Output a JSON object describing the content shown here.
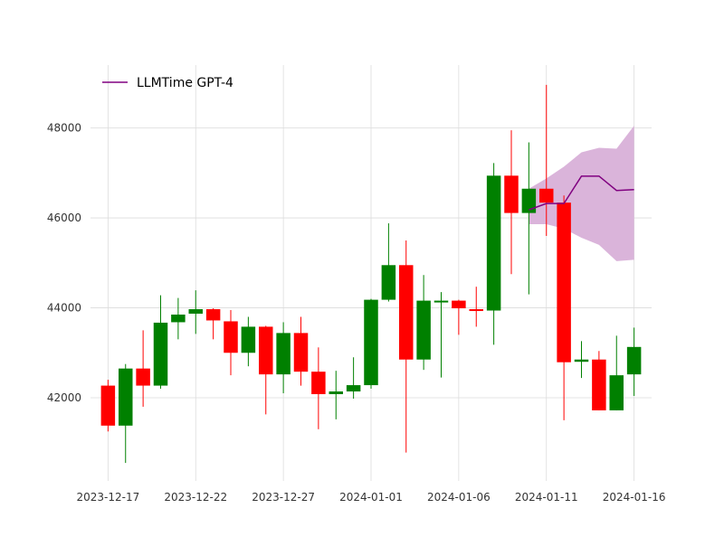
{
  "chart_data": {
    "type": "candlestick",
    "title": "",
    "xlabel": "",
    "ylabel": "",
    "grid": true,
    "legend_placement": "top-left",
    "colors": {
      "up": "#008000",
      "down": "#ff0000",
      "forecast": "#800080",
      "forecast_band": "#d8b0d8"
    },
    "legend": [
      {
        "label": "LLMTime GPT-4",
        "color": "#800080"
      }
    ],
    "ylim": [
      40150,
      49400
    ],
    "yticks": [
      42000,
      44000,
      46000,
      48000
    ],
    "ytick_labels": [
      "42000",
      "44000",
      "46000",
      "48000"
    ],
    "xlim": [
      "2023-12-16",
      "2024-01-17"
    ],
    "xticks": [
      "2023-12-17",
      "2023-12-22",
      "2023-12-27",
      "2024-01-01",
      "2024-01-06",
      "2024-01-11",
      "2024-01-16"
    ],
    "xtick_labels": [
      "2023-12-17",
      "2023-12-22",
      "2023-12-27",
      "2024-01-01",
      "2024-01-06",
      "2024-01-11",
      "2024-01-16"
    ],
    "candles": [
      {
        "date": "2023-12-17",
        "open": 42270,
        "close": 41380,
        "high": 42400,
        "low": 41250
      },
      {
        "date": "2023-12-18",
        "open": 41380,
        "close": 42650,
        "high": 42750,
        "low": 40550
      },
      {
        "date": "2023-12-19",
        "open": 42650,
        "close": 42270,
        "high": 43500,
        "low": 41800
      },
      {
        "date": "2023-12-20",
        "open": 42270,
        "close": 43670,
        "high": 44280,
        "low": 42200
      },
      {
        "date": "2023-12-21",
        "open": 43680,
        "close": 43850,
        "high": 44220,
        "low": 43300
      },
      {
        "date": "2023-12-22",
        "open": 43870,
        "close": 43970,
        "high": 44390,
        "low": 43420
      },
      {
        "date": "2023-12-23",
        "open": 43970,
        "close": 43720,
        "high": 43990,
        "low": 43300
      },
      {
        "date": "2023-12-24",
        "open": 43700,
        "close": 43000,
        "high": 43950,
        "low": 42500
      },
      {
        "date": "2023-12-25",
        "open": 43000,
        "close": 43580,
        "high": 43800,
        "low": 42700
      },
      {
        "date": "2023-12-26",
        "open": 43580,
        "close": 42520,
        "high": 43600,
        "low": 41630
      },
      {
        "date": "2023-12-27",
        "open": 42520,
        "close": 43440,
        "high": 43680,
        "low": 42100
      },
      {
        "date": "2023-12-28",
        "open": 43440,
        "close": 42580,
        "high": 43800,
        "low": 42270
      },
      {
        "date": "2023-12-29",
        "open": 42580,
        "close": 42080,
        "high": 43120,
        "low": 41300
      },
      {
        "date": "2023-12-30",
        "open": 42080,
        "close": 42140,
        "high": 42600,
        "low": 41520
      },
      {
        "date": "2023-12-31",
        "open": 42140,
        "close": 42280,
        "high": 42900,
        "low": 41980
      },
      {
        "date": "2024-01-01",
        "open": 42280,
        "close": 44180,
        "high": 44200,
        "low": 42200
      },
      {
        "date": "2024-01-02",
        "open": 44180,
        "close": 44950,
        "high": 45880,
        "low": 44140
      },
      {
        "date": "2024-01-03",
        "open": 44950,
        "close": 42850,
        "high": 45500,
        "low": 40780
      },
      {
        "date": "2024-01-04",
        "open": 42850,
        "close": 44160,
        "high": 44730,
        "low": 42620
      },
      {
        "date": "2024-01-05",
        "open": 44160,
        "close": 44160,
        "high": 44350,
        "low": 42450
      },
      {
        "date": "2024-01-06",
        "open": 44160,
        "close": 43990,
        "high": 44180,
        "low": 43400
      },
      {
        "date": "2024-01-07",
        "open": 43970,
        "close": 43930,
        "high": 44470,
        "low": 43580
      },
      {
        "date": "2024-01-08",
        "open": 43940,
        "close": 46940,
        "high": 47220,
        "low": 43180
      },
      {
        "date": "2024-01-09",
        "open": 46940,
        "close": 46110,
        "high": 47950,
        "low": 44750
      },
      {
        "date": "2024-01-10",
        "open": 46110,
        "close": 46650,
        "high": 47680,
        "low": 44300
      },
      {
        "date": "2024-01-11",
        "open": 46650,
        "close": 46340,
        "high": 48960,
        "low": 45600
      },
      {
        "date": "2024-01-12",
        "open": 46340,
        "close": 42790,
        "high": 46500,
        "low": 41500
      },
      {
        "date": "2024-01-13",
        "open": 42800,
        "close": 42850,
        "high": 43260,
        "low": 42440
      },
      {
        "date": "2024-01-14",
        "open": 42850,
        "close": 41720,
        "high": 43040,
        "low": 41720
      },
      {
        "date": "2024-01-15",
        "open": 41720,
        "close": 42500,
        "high": 43380,
        "low": 41720
      },
      {
        "date": "2024-01-16",
        "open": 42520,
        "close": 43130,
        "high": 43560,
        "low": 42040
      }
    ],
    "series": [
      {
        "name": "LLMTime GPT-4",
        "type": "line",
        "x": [
          "2024-01-10",
          "2024-01-11",
          "2024-01-12",
          "2024-01-13",
          "2024-01-14",
          "2024-01-15",
          "2024-01-16"
        ],
        "y": [
          46180,
          46320,
          46320,
          46930,
          46930,
          46610,
          46630
        ],
        "lower": [
          45860,
          45860,
          45760,
          45560,
          45400,
          45040,
          45070
        ],
        "upper": [
          46650,
          46880,
          47140,
          47460,
          47560,
          47540,
          48050
        ]
      }
    ]
  }
}
